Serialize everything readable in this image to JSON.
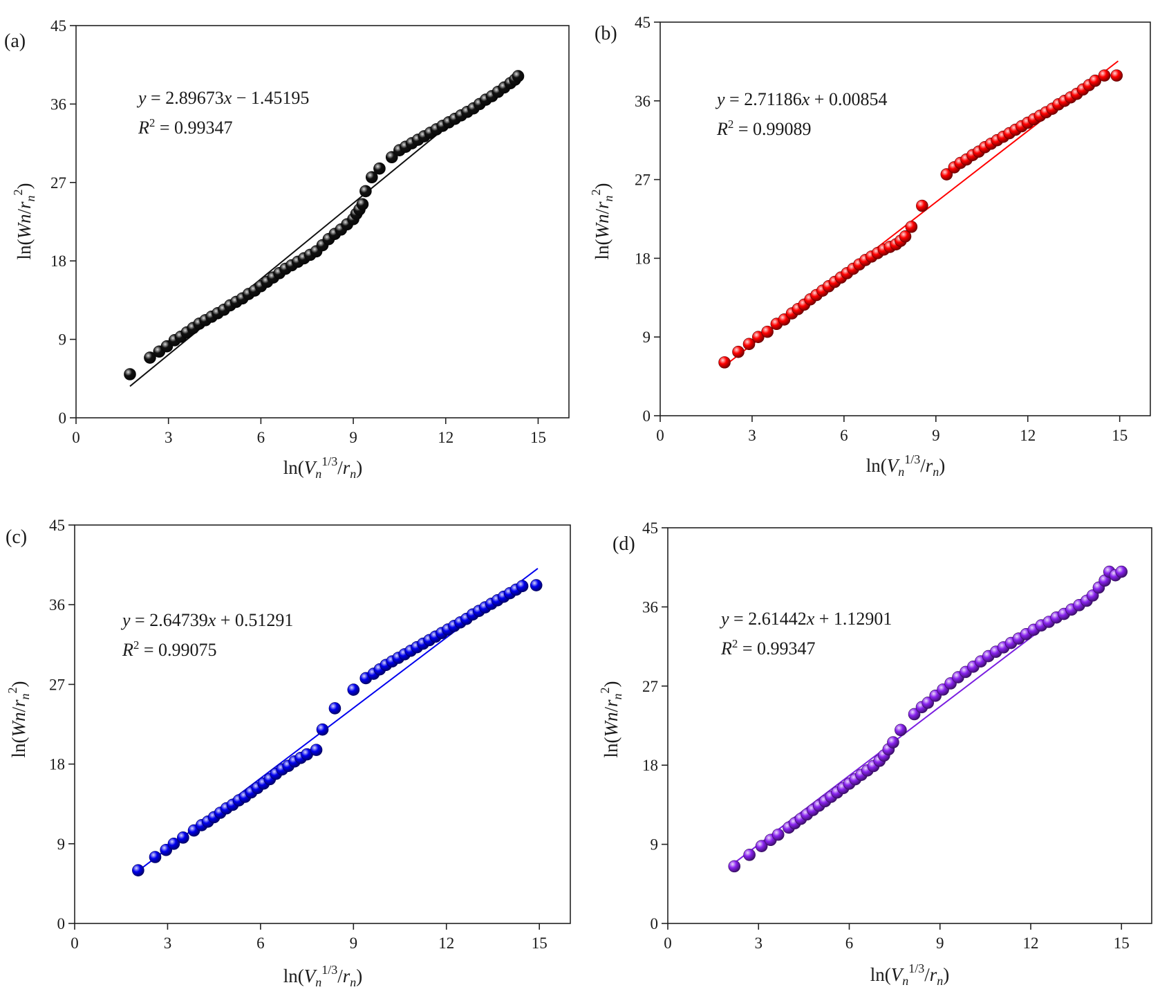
{
  "chart_data": [
    {
      "type": "scatter",
      "panel": "(a)",
      "color": "#111111",
      "xlabel": {
        "pre": "ln(",
        "v": "V",
        "n1": "n",
        "sup": "1/3",
        "slash": "/",
        "r": "r",
        "n2": "n",
        "post": ")"
      },
      "ylabel": {
        "pre": "ln(",
        "w": "Wn",
        "slash": "/",
        "r": "r",
        "n": "n",
        "sup": "2",
        "post": ")"
      },
      "xticks": [
        "0",
        "3",
        "6",
        "9",
        "12",
        "15"
      ],
      "yticks": [
        "0",
        "9",
        "18",
        "27",
        "36",
        "45"
      ],
      "xlim": [
        0,
        16
      ],
      "ylim": [
        0,
        45
      ],
      "fit": {
        "slope": 2.89673,
        "intercept": -1.45195,
        "x_range": [
          1.75,
          12.3
        ]
      },
      "equation": {
        "y": "y",
        "eq": " = 2.89673",
        "x": "x",
        "rest": " − 1.45195"
      },
      "r2": {
        "R": "R",
        "sup": "2",
        "rest": " = 0.99347"
      },
      "points": [
        [
          1.75,
          5.0
        ],
        [
          2.4,
          6.9
        ],
        [
          2.7,
          7.6
        ],
        [
          2.95,
          8.2
        ],
        [
          3.2,
          8.9
        ],
        [
          3.4,
          9.3
        ],
        [
          3.6,
          9.8
        ],
        [
          3.8,
          10.3
        ],
        [
          4.0,
          10.8
        ],
        [
          4.2,
          11.2
        ],
        [
          4.4,
          11.6
        ],
        [
          4.6,
          12.0
        ],
        [
          4.8,
          12.4
        ],
        [
          5.0,
          12.9
        ],
        [
          5.2,
          13.3
        ],
        [
          5.4,
          13.7
        ],
        [
          5.6,
          14.2
        ],
        [
          5.8,
          14.6
        ],
        [
          6.0,
          15.1
        ],
        [
          6.2,
          15.6
        ],
        [
          6.4,
          16.1
        ],
        [
          6.6,
          16.6
        ],
        [
          6.8,
          17.1
        ],
        [
          7.0,
          17.5
        ],
        [
          7.2,
          17.9
        ],
        [
          7.4,
          18.3
        ],
        [
          7.6,
          18.7
        ],
        [
          7.8,
          19.1
        ],
        [
          8.0,
          19.8
        ],
        [
          8.2,
          20.5
        ],
        [
          8.4,
          21.1
        ],
        [
          8.6,
          21.6
        ],
        [
          8.8,
          22.2
        ],
        [
          9.0,
          22.8
        ],
        [
          9.1,
          23.4
        ],
        [
          9.2,
          23.9
        ],
        [
          9.3,
          24.5
        ],
        [
          9.4,
          26.0
        ],
        [
          9.6,
          27.6
        ],
        [
          9.85,
          28.6
        ],
        [
          10.25,
          29.9
        ],
        [
          10.5,
          30.7
        ],
        [
          10.7,
          31.1
        ],
        [
          10.9,
          31.5
        ],
        [
          11.1,
          31.9
        ],
        [
          11.3,
          32.3
        ],
        [
          11.5,
          32.7
        ],
        [
          11.7,
          33.1
        ],
        [
          11.9,
          33.5
        ],
        [
          12.1,
          33.9
        ],
        [
          12.3,
          34.3
        ],
        [
          12.5,
          34.7
        ],
        [
          12.7,
          35.1
        ],
        [
          12.9,
          35.5
        ],
        [
          13.1,
          36.0
        ],
        [
          13.3,
          36.5
        ],
        [
          13.5,
          36.9
        ],
        [
          13.7,
          37.4
        ],
        [
          13.9,
          37.9
        ],
        [
          14.1,
          38.4
        ],
        [
          14.25,
          38.8
        ],
        [
          14.35,
          39.2
        ]
      ]
    },
    {
      "type": "scatter",
      "panel": "(b)",
      "color": "#ff0000",
      "xlabel": {
        "pre": "ln(",
        "v": "V",
        "n1": "n",
        "sup": "1/3",
        "slash": "/",
        "r": "r",
        "n2": "n",
        "post": ")"
      },
      "ylabel": {
        "pre": "ln(",
        "w": "Wn",
        "slash": "/",
        "r": "r",
        "n": "n",
        "sup": "2",
        "post": ")"
      },
      "xticks": [
        "0",
        "3",
        "6",
        "9",
        "12",
        "15"
      ],
      "yticks": [
        "0",
        "9",
        "18",
        "27",
        "36",
        "45"
      ],
      "xlim": [
        0,
        16
      ],
      "ylim": [
        0,
        45
      ],
      "fit": {
        "slope": 2.71186,
        "intercept": 0.00854,
        "x_range": [
          2.1,
          14.95
        ]
      },
      "equation": {
        "y": "y",
        "eq": " = 2.71186",
        "x": "x",
        "rest": " + 0.00854"
      },
      "r2": {
        "R": "R",
        "sup": "2",
        "rest": " = 0.99089"
      },
      "points": [
        [
          2.1,
          6.1
        ],
        [
          2.55,
          7.3
        ],
        [
          2.9,
          8.2
        ],
        [
          3.2,
          9.0
        ],
        [
          3.5,
          9.6
        ],
        [
          3.8,
          10.5
        ],
        [
          4.05,
          11.0
        ],
        [
          4.3,
          11.7
        ],
        [
          4.5,
          12.2
        ],
        [
          4.7,
          12.7
        ],
        [
          4.9,
          13.3
        ],
        [
          5.1,
          13.8
        ],
        [
          5.3,
          14.3
        ],
        [
          5.5,
          14.8
        ],
        [
          5.7,
          15.3
        ],
        [
          5.9,
          15.8
        ],
        [
          6.1,
          16.3
        ],
        [
          6.3,
          16.8
        ],
        [
          6.5,
          17.3
        ],
        [
          6.7,
          17.8
        ],
        [
          6.9,
          18.2
        ],
        [
          7.1,
          18.6
        ],
        [
          7.3,
          19.0
        ],
        [
          7.5,
          19.3
        ],
        [
          7.7,
          19.6
        ],
        [
          7.85,
          20.0
        ],
        [
          8.0,
          20.5
        ],
        [
          8.2,
          21.6
        ],
        [
          8.55,
          24.0
        ],
        [
          9.35,
          27.6
        ],
        [
          9.6,
          28.4
        ],
        [
          9.8,
          28.9
        ],
        [
          10.0,
          29.3
        ],
        [
          10.2,
          29.8
        ],
        [
          10.4,
          30.2
        ],
        [
          10.6,
          30.7
        ],
        [
          10.8,
          31.1
        ],
        [
          11.0,
          31.5
        ],
        [
          11.2,
          31.9
        ],
        [
          11.4,
          32.3
        ],
        [
          11.6,
          32.7
        ],
        [
          11.8,
          33.1
        ],
        [
          12.0,
          33.5
        ],
        [
          12.2,
          33.9
        ],
        [
          12.4,
          34.3
        ],
        [
          12.6,
          34.7
        ],
        [
          12.8,
          35.1
        ],
        [
          13.0,
          35.6
        ],
        [
          13.2,
          36.0
        ],
        [
          13.4,
          36.4
        ],
        [
          13.6,
          36.8
        ],
        [
          13.8,
          37.3
        ],
        [
          14.0,
          37.8
        ],
        [
          14.2,
          38.3
        ],
        [
          14.5,
          38.9
        ],
        [
          14.9,
          38.9
        ]
      ]
    },
    {
      "type": "scatter",
      "panel": "(c)",
      "color": "#0000ee",
      "xlabel": {
        "pre": "ln(",
        "v": "V",
        "n1": "n",
        "sup": "1/3",
        "slash": "/",
        "r": "r",
        "n2": "n",
        "post": ")"
      },
      "ylabel": {
        "pre": "ln(",
        "w": "Wn",
        "slash": "/",
        "r": "r",
        "n": "n",
        "sup": "2",
        "post": ")"
      },
      "xticks": [
        "0",
        "3",
        "6",
        "9",
        "12",
        "15"
      ],
      "yticks": [
        "0",
        "9",
        "18",
        "27",
        "36",
        "45"
      ],
      "xlim": [
        0,
        16
      ],
      "ylim": [
        0,
        45
      ],
      "fit": {
        "slope": 2.64739,
        "intercept": 0.51291,
        "x_range": [
          2.0,
          14.95
        ]
      },
      "equation": {
        "y": "y",
        "eq": " = 2.64739",
        "x": "x",
        "rest": " + 0.51291"
      },
      "r2": {
        "R": "R",
        "sup": "2",
        "rest": " = 0.99075"
      },
      "points": [
        [
          2.05,
          6.0
        ],
        [
          2.6,
          7.5
        ],
        [
          2.95,
          8.3
        ],
        [
          3.2,
          9.0
        ],
        [
          3.5,
          9.7
        ],
        [
          3.85,
          10.5
        ],
        [
          4.1,
          11.1
        ],
        [
          4.3,
          11.5
        ],
        [
          4.5,
          12.0
        ],
        [
          4.7,
          12.5
        ],
        [
          4.9,
          13.0
        ],
        [
          5.1,
          13.4
        ],
        [
          5.3,
          13.9
        ],
        [
          5.5,
          14.3
        ],
        [
          5.7,
          14.8
        ],
        [
          5.9,
          15.3
        ],
        [
          6.1,
          15.8
        ],
        [
          6.3,
          16.3
        ],
        [
          6.5,
          16.9
        ],
        [
          6.7,
          17.4
        ],
        [
          6.9,
          17.8
        ],
        [
          7.1,
          18.3
        ],
        [
          7.3,
          18.7
        ],
        [
          7.5,
          19.1
        ],
        [
          7.8,
          19.6
        ],
        [
          8.0,
          21.9
        ],
        [
          8.4,
          24.3
        ],
        [
          9.0,
          26.4
        ],
        [
          9.4,
          27.7
        ],
        [
          9.65,
          28.2
        ],
        [
          9.85,
          28.7
        ],
        [
          10.05,
          29.2
        ],
        [
          10.25,
          29.6
        ],
        [
          10.45,
          30.0
        ],
        [
          10.65,
          30.4
        ],
        [
          10.85,
          30.8
        ],
        [
          11.05,
          31.2
        ],
        [
          11.25,
          31.6
        ],
        [
          11.45,
          32.0
        ],
        [
          11.65,
          32.4
        ],
        [
          11.85,
          32.8
        ],
        [
          12.05,
          33.2
        ],
        [
          12.25,
          33.6
        ],
        [
          12.45,
          34.0
        ],
        [
          12.65,
          34.4
        ],
        [
          12.85,
          34.9
        ],
        [
          13.05,
          35.3
        ],
        [
          13.25,
          35.7
        ],
        [
          13.45,
          36.1
        ],
        [
          13.65,
          36.5
        ],
        [
          13.85,
          36.9
        ],
        [
          14.05,
          37.3
        ],
        [
          14.25,
          37.7
        ],
        [
          14.45,
          38.1
        ],
        [
          14.9,
          38.2
        ]
      ]
    },
    {
      "type": "scatter",
      "panel": "(d)",
      "color": "#8822ee",
      "xlabel": {
        "pre": "ln(",
        "v": "V",
        "n1": "n",
        "sup": "1/3",
        "slash": "/",
        "r": "r",
        "n2": "n",
        "post": ")"
      },
      "ylabel": {
        "pre": "ln(",
        "w": "Wn",
        "slash": "/",
        "r": "r",
        "n": "n",
        "sup": "2",
        "post": ")"
      },
      "xticks": [
        "0",
        "3",
        "6",
        "9",
        "12",
        "15"
      ],
      "yticks": [
        "0",
        "9",
        "18",
        "27",
        "36",
        "45"
      ],
      "xlim": [
        0,
        16
      ],
      "ylim": [
        0,
        45
      ],
      "fit": {
        "slope": 2.61442,
        "intercept": 1.12901,
        "x_range": [
          2.2,
          15.0
        ]
      },
      "equation": {
        "y": "y",
        "eq": " = 2.61442",
        "x": "x",
        "rest": " + 1.12901"
      },
      "r2": {
        "R": "R",
        "sup": "2",
        "rest": " = 0.99347"
      },
      "points": [
        [
          2.2,
          6.5
        ],
        [
          2.7,
          7.8
        ],
        [
          3.1,
          8.8
        ],
        [
          3.4,
          9.5
        ],
        [
          3.65,
          10.1
        ],
        [
          4.0,
          10.9
        ],
        [
          4.2,
          11.4
        ],
        [
          4.4,
          11.9
        ],
        [
          4.6,
          12.4
        ],
        [
          4.8,
          12.9
        ],
        [
          5.0,
          13.4
        ],
        [
          5.2,
          13.9
        ],
        [
          5.4,
          14.4
        ],
        [
          5.6,
          14.9
        ],
        [
          5.8,
          15.4
        ],
        [
          6.0,
          15.9
        ],
        [
          6.2,
          16.4
        ],
        [
          6.4,
          16.9
        ],
        [
          6.6,
          17.4
        ],
        [
          6.8,
          17.9
        ],
        [
          7.0,
          18.5
        ],
        [
          7.15,
          19.1
        ],
        [
          7.3,
          19.8
        ],
        [
          7.45,
          20.6
        ],
        [
          7.7,
          22.0
        ],
        [
          8.15,
          23.8
        ],
        [
          8.4,
          24.6
        ],
        [
          8.6,
          25.1
        ],
        [
          8.85,
          25.9
        ],
        [
          9.1,
          26.6
        ],
        [
          9.35,
          27.3
        ],
        [
          9.6,
          28.0
        ],
        [
          9.85,
          28.6
        ],
        [
          10.1,
          29.2
        ],
        [
          10.35,
          29.8
        ],
        [
          10.6,
          30.4
        ],
        [
          10.85,
          30.9
        ],
        [
          11.1,
          31.4
        ],
        [
          11.35,
          31.9
        ],
        [
          11.6,
          32.4
        ],
        [
          11.85,
          32.9
        ],
        [
          12.1,
          33.4
        ],
        [
          12.35,
          33.9
        ],
        [
          12.6,
          34.3
        ],
        [
          12.85,
          34.8
        ],
        [
          13.1,
          35.2
        ],
        [
          13.35,
          35.7
        ],
        [
          13.6,
          36.2
        ],
        [
          13.85,
          36.7
        ],
        [
          14.05,
          37.3
        ],
        [
          14.25,
          38.2
        ],
        [
          14.45,
          39.0
        ],
        [
          14.6,
          40.0
        ],
        [
          14.8,
          39.6
        ],
        [
          15.0,
          40.0
        ]
      ]
    }
  ]
}
